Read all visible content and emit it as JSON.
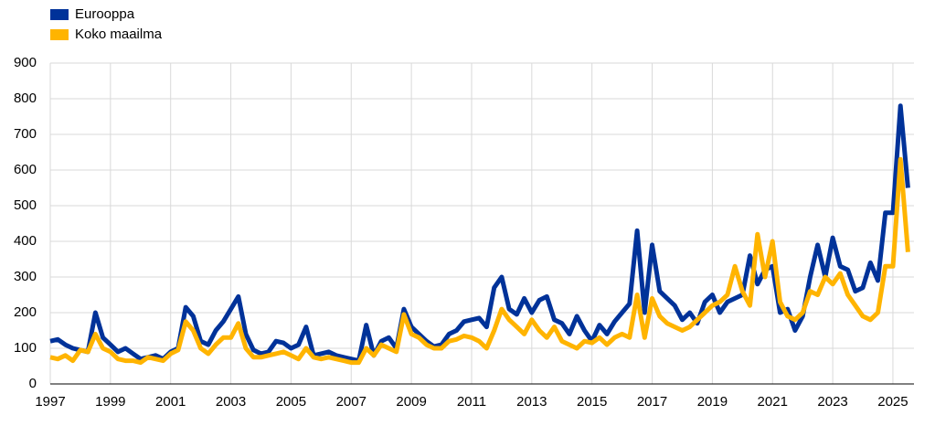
{
  "chart_data": {
    "type": "line",
    "x": [
      1997,
      1997.25,
      1997.5,
      1997.75,
      1998,
      1998.25,
      1998.5,
      1998.75,
      1999,
      1999.25,
      1999.5,
      1999.75,
      2000,
      2000.25,
      2000.5,
      2000.75,
      2001,
      2001.25,
      2001.5,
      2001.75,
      2002,
      2002.25,
      2002.5,
      2002.75,
      2003,
      2003.25,
      2003.5,
      2003.75,
      2004,
      2004.25,
      2004.5,
      2004.75,
      2005,
      2005.25,
      2005.5,
      2005.75,
      2006,
      2006.25,
      2006.5,
      2006.75,
      2007,
      2007.25,
      2007.5,
      2007.75,
      2008,
      2008.25,
      2008.5,
      2008.75,
      2009,
      2009.25,
      2009.5,
      2009.75,
      2010,
      2010.25,
      2010.5,
      2010.75,
      2011,
      2011.25,
      2011.5,
      2011.75,
      2012,
      2012.25,
      2012.5,
      2012.75,
      2013,
      2013.25,
      2013.5,
      2013.75,
      2014,
      2014.25,
      2014.5,
      2014.75,
      2015,
      2015.25,
      2015.5,
      2015.75,
      2016,
      2016.25,
      2016.5,
      2016.75,
      2017,
      2017.25,
      2017.5,
      2017.75,
      2018,
      2018.25,
      2018.5,
      2018.75,
      2019,
      2019.25,
      2019.5,
      2019.75,
      2020,
      2020.25,
      2020.5,
      2020.75,
      2021,
      2021.25,
      2021.5,
      2021.75,
      2022,
      2022.25,
      2022.5,
      2022.75,
      2023,
      2023.25,
      2023.5,
      2023.75,
      2024,
      2024.25,
      2024.5,
      2024.75,
      2025,
      2025.25,
      2025.5
    ],
    "series": [
      {
        "name": "Eurooppa",
        "color": "#003299",
        "values": [
          120,
          125,
          110,
          100,
          95,
          90,
          200,
          130,
          110,
          90,
          100,
          85,
          70,
          75,
          80,
          70,
          90,
          100,
          215,
          190,
          120,
          110,
          150,
          175,
          210,
          245,
          140,
          95,
          85,
          90,
          120,
          115,
          100,
          110,
          160,
          80,
          85,
          90,
          80,
          75,
          70,
          65,
          165,
          80,
          120,
          130,
          100,
          210,
          160,
          140,
          120,
          105,
          110,
          140,
          150,
          175,
          180,
          185,
          160,
          270,
          300,
          210,
          195,
          240,
          200,
          235,
          245,
          180,
          170,
          140,
          190,
          150,
          120,
          165,
          140,
          175,
          200,
          225,
          430,
          200,
          390,
          260,
          240,
          220,
          180,
          200,
          170,
          230,
          250,
          200,
          230,
          240,
          250,
          360,
          280,
          320,
          330,
          200,
          210,
          150,
          190,
          300,
          390,
          300,
          410,
          330,
          320,
          260,
          270,
          340,
          290,
          480,
          480,
          780,
          550
        ]
      },
      {
        "name": "Koko maailma",
        "color": "#ffb400",
        "values": [
          75,
          70,
          80,
          65,
          95,
          90,
          140,
          100,
          90,
          70,
          65,
          65,
          60,
          75,
          70,
          65,
          85,
          95,
          175,
          150,
          100,
          85,
          110,
          130,
          130,
          170,
          100,
          75,
          75,
          80,
          85,
          90,
          80,
          70,
          100,
          75,
          70,
          75,
          70,
          65,
          60,
          60,
          100,
          80,
          110,
          100,
          90,
          195,
          140,
          130,
          110,
          100,
          100,
          120,
          125,
          135,
          130,
          120,
          100,
          150,
          210,
          180,
          160,
          140,
          180,
          150,
          130,
          160,
          120,
          110,
          100,
          120,
          115,
          130,
          110,
          130,
          140,
          130,
          250,
          130,
          240,
          190,
          170,
          160,
          150,
          160,
          180,
          200,
          220,
          230,
          250,
          330,
          260,
          220,
          420,
          300,
          400,
          230,
          190,
          180,
          200,
          260,
          250,
          300,
          280,
          310,
          250,
          220,
          190,
          180,
          200,
          330,
          330,
          630,
          370
        ]
      }
    ],
    "xlim": [
      1997,
      2025.7
    ],
    "xticks": [
      1997,
      1999,
      2001,
      2003,
      2005,
      2007,
      2009,
      2011,
      2013,
      2015,
      2017,
      2019,
      2021,
      2023,
      2025
    ],
    "ylim": [
      0,
      900
    ],
    "yticks": [
      0,
      100,
      200,
      300,
      400,
      500,
      600,
      700,
      800,
      900
    ],
    "grid": true
  }
}
